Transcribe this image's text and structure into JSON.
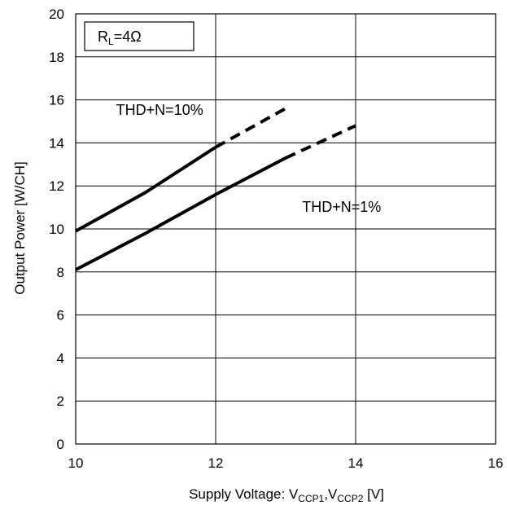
{
  "chart_data": {
    "type": "line",
    "xlim": [
      10,
      16
    ],
    "ylim": [
      0,
      20
    ],
    "x_ticks": [
      "10",
      "12",
      "14",
      "16"
    ],
    "y_ticks": [
      "0",
      "2",
      "4",
      "6",
      "8",
      "10",
      "12",
      "14",
      "16",
      "18",
      "20"
    ],
    "grid": true,
    "xlabel": {
      "prefix": "Supply Voltage: V",
      "sub1": "CCP1",
      "mid": ",V",
      "sub2": "CCP2",
      "suffix": " [V]"
    },
    "ylabel": "Output Power [W/CH]",
    "legend_box": {
      "main": "R",
      "sub": "L",
      "rest": "=4Ω"
    },
    "series": [
      {
        "name": "THD+N=10%",
        "solid": [
          [
            10,
            9.9
          ],
          [
            11,
            11.7
          ],
          [
            12,
            13.8
          ]
        ],
        "dashed": [
          [
            12,
            13.8
          ],
          [
            13,
            15.6
          ]
        ]
      },
      {
        "name": "THD+N=1%",
        "solid": [
          [
            10,
            8.1
          ],
          [
            11,
            9.8
          ],
          [
            12,
            11.6
          ],
          [
            13,
            13.3
          ]
        ],
        "dashed": [
          [
            13,
            13.3
          ],
          [
            14,
            14.8
          ]
        ]
      }
    ],
    "annotations": [
      {
        "text": "THD+N=10%",
        "x": 11.2,
        "y": 15.3
      },
      {
        "text": "THD+N=1%",
        "x": 13.8,
        "y": 10.8
      }
    ]
  }
}
